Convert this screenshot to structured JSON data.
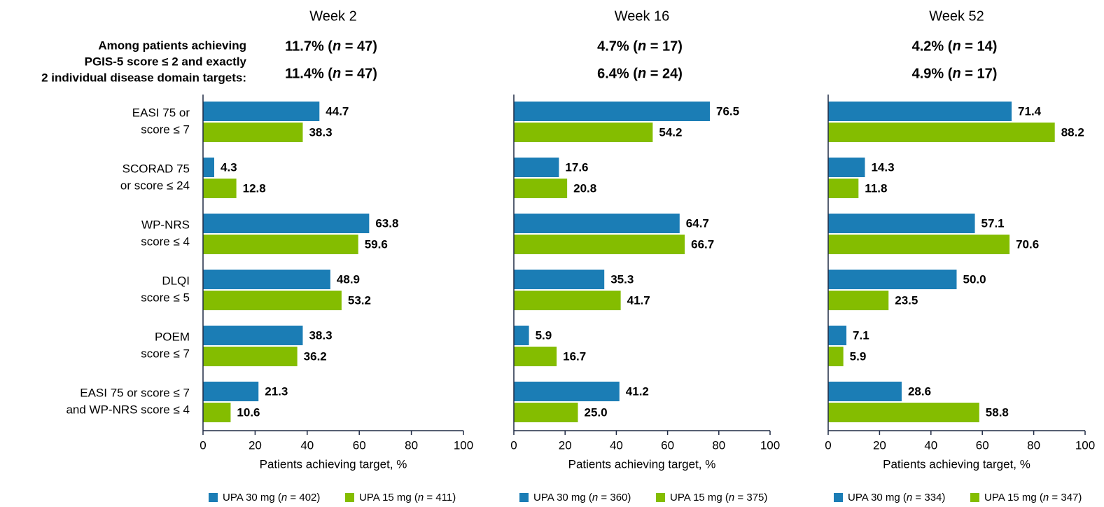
{
  "header_note": [
    "Among patients achieving",
    "PGIS-5 score ≤ 2 and exactly",
    "2 individual disease domain targets:"
  ],
  "chart_data": [
    {
      "type": "barh",
      "title": "Week 2",
      "subtitles": [
        "11.7% (n = 47)",
        "11.4% (n = 47)"
      ],
      "categories": [
        [
          "EASI 75 or",
          "score ≤ 7"
        ],
        [
          "SCORAD 75",
          "or score ≤ 24"
        ],
        [
          "WP-NRS",
          "score ≤ 4"
        ],
        [
          "DLQI",
          "score ≤ 5"
        ],
        [
          "POEM",
          "score ≤ 7"
        ],
        [
          "EASI 75 or  score ≤ 7",
          "and WP-NRS score ≤ 4"
        ]
      ],
      "series": [
        {
          "name": "UPA 30 mg (n = 402)",
          "color": "#1b7db5",
          "label_color": "#1b80b8",
          "values": [
            44.7,
            4.3,
            63.8,
            48.9,
            38.3,
            21.3
          ],
          "value_labels": [
            "44.7",
            "4.3",
            "63.8",
            "48.9",
            "38.3",
            "21.3"
          ]
        },
        {
          "name": "UPA 15 mg (n = 411)",
          "color": "#84bd00",
          "label_color": "#7ab800",
          "values": [
            38.3,
            12.8,
            59.6,
            53.2,
            36.2,
            10.6
          ],
          "value_labels": [
            "38.3",
            "12.8",
            "59.6",
            "53.2",
            "36.2",
            "10.6"
          ]
        }
      ],
      "xlabel": "Patients achieving target, %",
      "xlim": [
        0,
        100
      ],
      "xticks": [
        0,
        20,
        40,
        60,
        80,
        100
      ]
    },
    {
      "type": "barh",
      "title": "Week 16",
      "subtitles": [
        "4.7% (n = 17)",
        "6.4% (n = 24)"
      ],
      "series": [
        {
          "name": "UPA 30 mg (n = 360)",
          "color": "#1b7db5",
          "label_color": "#1b80b8",
          "values": [
            76.5,
            17.6,
            64.7,
            35.3,
            5.9,
            41.2
          ],
          "value_labels": [
            "76.5",
            "17.6",
            "64.7",
            "35.3",
            "5.9",
            "41.2"
          ]
        },
        {
          "name": "UPA 15 mg (n = 375)",
          "color": "#84bd00",
          "label_color": "#7ab800",
          "values": [
            54.2,
            20.8,
            66.7,
            41.7,
            16.7,
            25.0
          ],
          "value_labels": [
            "54.2",
            "20.8",
            "66.7",
            "41.7",
            "16.7",
            "25.0"
          ]
        }
      ],
      "xlabel": "Patients achieving target, %",
      "xlim": [
        0,
        100
      ],
      "xticks": [
        0,
        20,
        40,
        60,
        80,
        100
      ]
    },
    {
      "type": "barh",
      "title": "Week 52",
      "subtitles": [
        "4.2% (n = 14)",
        "4.9% (n = 17)"
      ],
      "series": [
        {
          "name": "UPA 30 mg (n = 334)",
          "color": "#1b7db5",
          "label_color": "#1b80b8",
          "values": [
            71.4,
            14.3,
            57.1,
            50.0,
            7.1,
            28.6
          ],
          "value_labels": [
            "71.4",
            "14.3",
            "57.1",
            "50.0",
            "7.1",
            "28.6"
          ]
        },
        {
          "name": "UPA 15 mg (n = 347)",
          "color": "#84bd00",
          "label_color": "#7ab800",
          "values": [
            88.2,
            11.8,
            70.6,
            23.5,
            5.9,
            58.8
          ],
          "value_labels": [
            "88.2",
            "11.8",
            "70.6",
            "23.5",
            "5.9",
            "58.8"
          ]
        }
      ],
      "xlabel": "Patients achieving target, %",
      "xlim": [
        0,
        100
      ],
      "xticks": [
        0,
        20,
        40,
        60,
        80,
        100
      ]
    }
  ]
}
